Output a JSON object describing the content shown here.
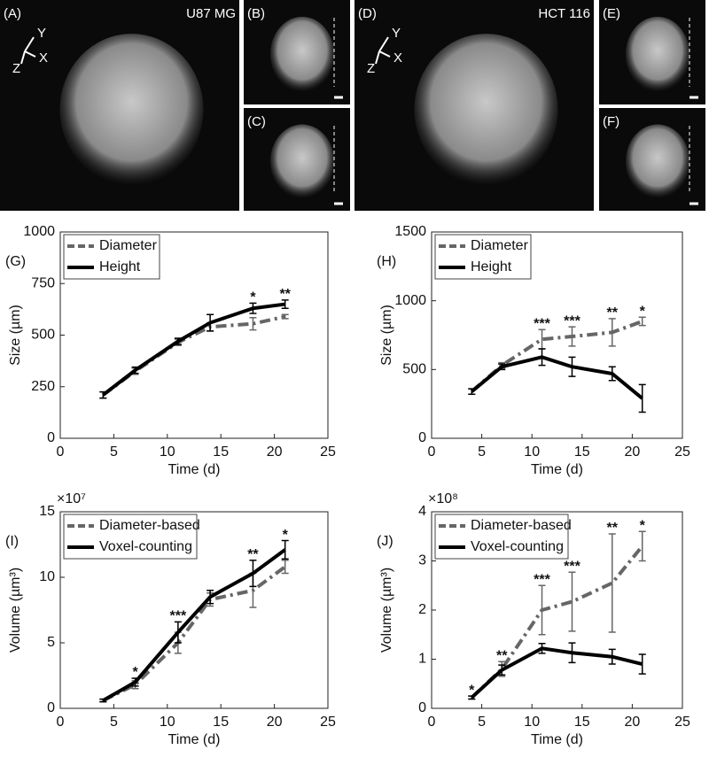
{
  "panels": [
    {
      "label": "(A)",
      "title": "U87 MG",
      "axes": [
        "Y",
        "X",
        "Z"
      ]
    },
    {
      "label": "(B)"
    },
    {
      "label": "(C)"
    },
    {
      "label": "(D)",
      "title": "HCT 116",
      "axes": [
        "Y",
        "X",
        "Z"
      ]
    },
    {
      "label": "(E)"
    },
    {
      "label": "(F)"
    }
  ],
  "chart_data": [
    {
      "type": "line",
      "panel_label": "(G)",
      "x_label": "Time (d)",
      "y_label": "Size (µm)",
      "x": [
        4,
        7,
        11,
        14,
        18,
        21
      ],
      "xlim": [
        0,
        25
      ],
      "xticks": [
        0,
        5,
        10,
        15,
        20,
        25
      ],
      "ylim": [
        0,
        1000
      ],
      "yticks": [
        0,
        250,
        500,
        750,
        1000
      ],
      "grid": false,
      "legend": "upper left",
      "series": [
        {
          "name": "Diameter",
          "color": "#666666",
          "style": "dash-dot",
          "values": [
            210,
            325,
            465,
            540,
            555,
            590
          ],
          "errors": [
            15,
            15,
            15,
            20,
            30,
            10
          ]
        },
        {
          "name": "Height",
          "color": "#000000",
          "style": "solid",
          "values": [
            210,
            330,
            470,
            560,
            630,
            650
          ],
          "errors": [
            15,
            15,
            15,
            40,
            25,
            20
          ]
        }
      ],
      "annotations": [
        {
          "x": 18,
          "text": "*"
        },
        {
          "x": 21,
          "text": "**"
        }
      ]
    },
    {
      "type": "line",
      "panel_label": "(H)",
      "x_label": "Time (d)",
      "y_label": "Size (µm)",
      "x": [
        4,
        7,
        11,
        14,
        18,
        21
      ],
      "xlim": [
        0,
        25
      ],
      "xticks": [
        0,
        5,
        10,
        15,
        20,
        25
      ],
      "ylim": [
        0,
        1500
      ],
      "yticks": [
        0,
        500,
        1000,
        1500
      ],
      "grid": false,
      "legend": "upper left",
      "series": [
        {
          "name": "Diameter",
          "color": "#666666",
          "style": "dash-dot",
          "values": [
            340,
            530,
            720,
            740,
            770,
            850
          ],
          "errors": [
            20,
            20,
            70,
            70,
            100,
            30
          ]
        },
        {
          "name": "Height",
          "color": "#000000",
          "style": "solid",
          "values": [
            340,
            520,
            590,
            520,
            470,
            290
          ],
          "errors": [
            20,
            20,
            60,
            70,
            50,
            100
          ]
        }
      ],
      "annotations": [
        {
          "x": 11,
          "text": "***"
        },
        {
          "x": 14,
          "text": "***"
        },
        {
          "x": 18,
          "text": "**"
        },
        {
          "x": 21,
          "text": "*"
        }
      ]
    },
    {
      "type": "line",
      "panel_label": "(I)",
      "x_label": "Time (d)",
      "y_label": "Volume (µm³)",
      "y_multiplier": "×10⁷",
      "x": [
        4,
        7,
        11,
        14,
        18,
        21
      ],
      "xlim": [
        0,
        25
      ],
      "xticks": [
        0,
        5,
        10,
        15,
        20,
        25
      ],
      "ylim": [
        0,
        15
      ],
      "yticks": [
        0,
        5,
        10,
        15
      ],
      "grid": false,
      "legend": "upper left",
      "series": [
        {
          "name": "Diameter-based",
          "color": "#666666",
          "style": "dash-dot",
          "values": [
            0.6,
            1.8,
            5.0,
            8.3,
            9.0,
            10.8
          ],
          "errors": [
            0.1,
            0.3,
            0.8,
            0.5,
            1.3,
            0.5
          ]
        },
        {
          "name": "Voxel-counting",
          "color": "#000000",
          "style": "solid",
          "values": [
            0.6,
            2.0,
            5.8,
            8.5,
            10.3,
            12.1
          ],
          "errors": [
            0.1,
            0.3,
            0.8,
            0.5,
            1.0,
            0.7
          ]
        }
      ],
      "annotations": [
        {
          "x": 7,
          "text": "*"
        },
        {
          "x": 11,
          "text": "***"
        },
        {
          "x": 18,
          "text": "**"
        },
        {
          "x": 21,
          "text": "*"
        }
      ]
    },
    {
      "type": "line",
      "panel_label": "(J)",
      "x_label": "Time (d)",
      "y_label": "Volume (µm³)",
      "y_multiplier": "×10⁸",
      "x": [
        4,
        7,
        11,
        14,
        18,
        21
      ],
      "xlim": [
        0,
        25
      ],
      "xticks": [
        0,
        5,
        10,
        15,
        20,
        25
      ],
      "ylim": [
        0,
        4
      ],
      "yticks": [
        0,
        1,
        2,
        3,
        4
      ],
      "grid": false,
      "legend": "upper left",
      "series": [
        {
          "name": "Diameter-based",
          "color": "#666666",
          "style": "dash-dot",
          "values": [
            0.22,
            0.8,
            2.0,
            2.17,
            2.55,
            3.3
          ],
          "errors": [
            0.03,
            0.15,
            0.5,
            0.6,
            1.0,
            0.3
          ]
        },
        {
          "name": "Voxel-counting",
          "color": "#000000",
          "style": "solid",
          "values": [
            0.22,
            0.78,
            1.22,
            1.13,
            1.05,
            0.9
          ],
          "errors": [
            0.03,
            0.1,
            0.1,
            0.2,
            0.15,
            0.2
          ]
        }
      ],
      "annotations": [
        {
          "x": 4,
          "text": "*"
        },
        {
          "x": 7,
          "text": "**"
        },
        {
          "x": 11,
          "text": "***"
        },
        {
          "x": 14,
          "text": "***"
        },
        {
          "x": 18,
          "text": "**"
        },
        {
          "x": 21,
          "text": "*"
        }
      ]
    }
  ]
}
